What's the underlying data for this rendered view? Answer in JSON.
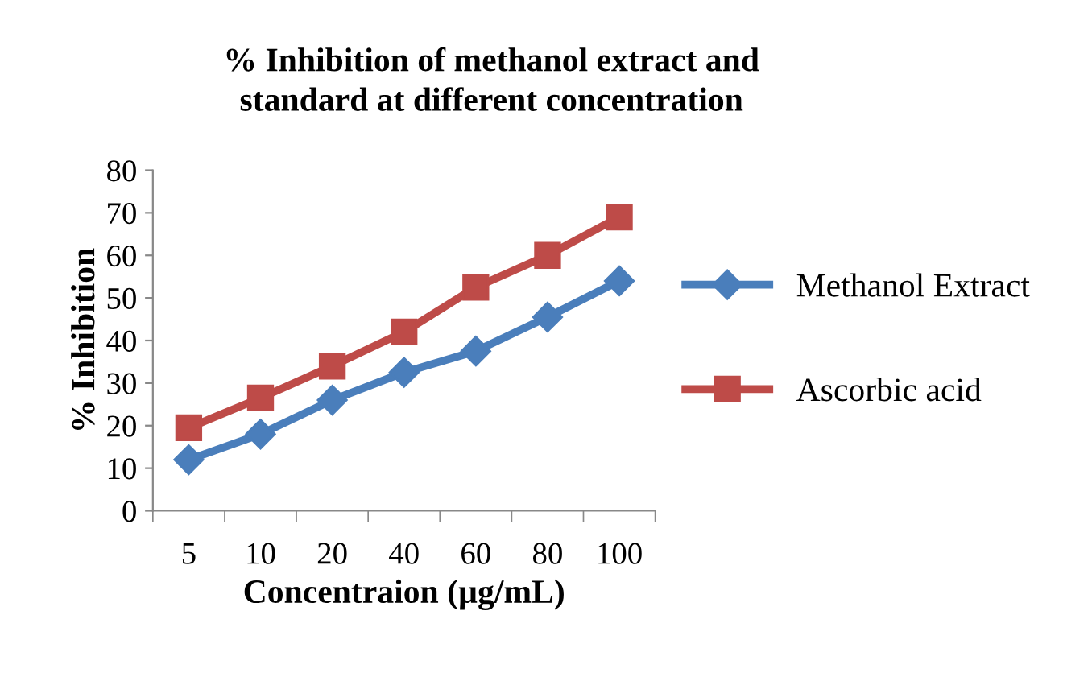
{
  "chart_data": {
    "type": "line",
    "title": "% Inhibition of methanol extract and\nstandard at different concentration",
    "xlabel": "Concentraion (µg/mL)",
    "ylabel": "% Inhibition",
    "categories": [
      "5",
      "10",
      "20",
      "40",
      "60",
      "80",
      "100"
    ],
    "series": [
      {
        "name": "Methanol Extract",
        "color": "#4a7ebb",
        "marker": "diamond",
        "values": [
          12,
          18,
          26,
          32.5,
          37.5,
          45.5,
          54
        ]
      },
      {
        "name": "Ascorbic acid",
        "color": "#be4b48",
        "marker": "square",
        "values": [
          19.5,
          26.5,
          34,
          42,
          52.5,
          60,
          69
        ]
      }
    ],
    "ylim": [
      0,
      80
    ],
    "yticks": [
      0,
      10,
      20,
      30,
      40,
      50,
      60,
      70,
      80
    ],
    "grid": false,
    "legend": "right"
  }
}
